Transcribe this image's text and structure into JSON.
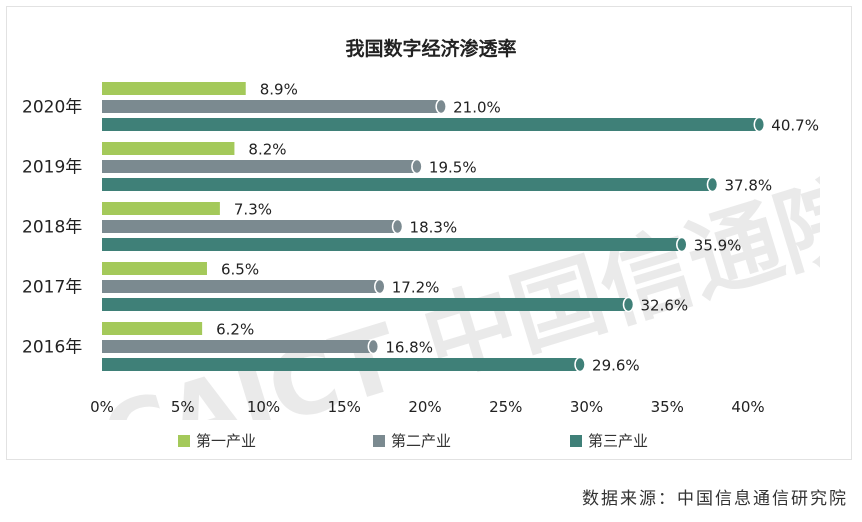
{
  "chart_data": {
    "type": "bar",
    "orientation": "horizontal",
    "title": "我国数字经济渗透率",
    "categories": [
      "2020年",
      "2019年",
      "2018年",
      "2017年",
      "2016年"
    ],
    "series": [
      {
        "name": "第一产业",
        "color": "#a4c95a",
        "values": [
          8.9,
          8.2,
          7.3,
          6.5,
          6.2
        ],
        "labels": [
          "8.9%",
          "8.2%",
          "7.3%",
          "6.5%",
          "6.2%"
        ]
      },
      {
        "name": "第二产业",
        "color": "#7b8a90",
        "values": [
          21.0,
          19.5,
          18.3,
          17.2,
          16.8
        ],
        "labels": [
          "21.0%",
          "19.5%",
          "18.3%",
          "17.2%",
          "16.8%"
        ]
      },
      {
        "name": "第三产业",
        "color": "#3f8078",
        "values": [
          40.7,
          37.8,
          35.9,
          32.6,
          29.6
        ],
        "labels": [
          "40.7%",
          "37.8%",
          "35.9%",
          "32.6%",
          "29.6%"
        ]
      }
    ],
    "xlim": [
      0,
      40
    ],
    "xticks": [
      "0%",
      "5%",
      "10%",
      "15%",
      "20%",
      "25%",
      "30%",
      "35%",
      "40%"
    ],
    "grid": false,
    "legend_position": "bottom"
  },
  "watermark": {
    "text": "CAICT 中国信通院"
  },
  "source": "数据来源：中国信息通信研究院"
}
